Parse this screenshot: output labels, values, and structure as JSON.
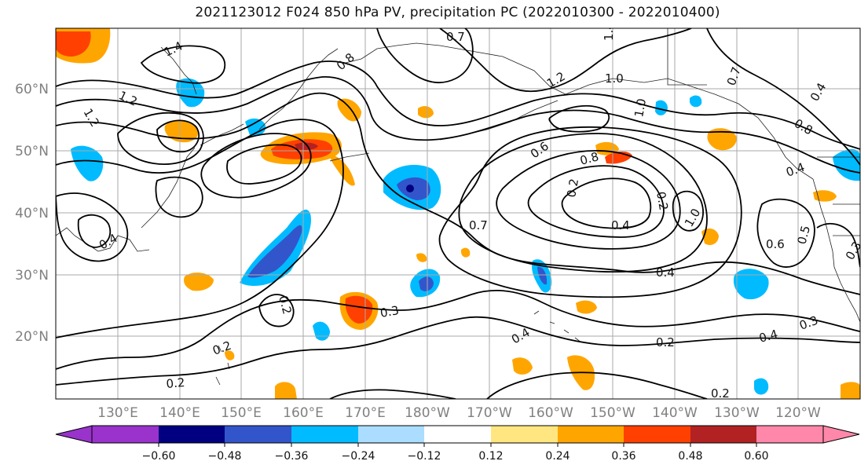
{
  "title": "2021123012 F024 850 hPa PV, precipitation PC (2022010300 - 2022010400)",
  "map": {
    "lat_labels": [
      "20°N",
      "30°N",
      "40°N",
      "50°N",
      "60°N"
    ],
    "lon_labels": [
      "130°E",
      "140°E",
      "150°E",
      "160°E",
      "170°E",
      "180°W",
      "170°W",
      "160°W",
      "150°W",
      "140°W",
      "130°W",
      "120°W"
    ],
    "contour_labels": [
      "1.4",
      "1.2",
      "1.2",
      "0.7",
      "1.4",
      "0.8",
      "1.2",
      "1.0",
      "1.0",
      "0.7",
      "0.8",
      "0.4",
      "0.4",
      "0.6",
      "0.8",
      "0.7",
      "0.2",
      "0.2",
      "0.4",
      "1.0",
      "0.5",
      "0.6",
      "0.4",
      "0.4",
      "0.3",
      "0.2",
      "0.4",
      "0.2",
      "0.3",
      "0.2",
      "0.4",
      "0.2",
      "0.2",
      "0.3"
    ]
  },
  "colorbar": {
    "ticks": [
      "−0.60",
      "−0.48",
      "−0.36",
      "−0.24",
      "−0.12",
      "0.12",
      "0.24",
      "0.36",
      "0.48",
      "0.60"
    ],
    "colors": [
      "#9933cc",
      "#000080",
      "#3355cc",
      "#00bbff",
      "#aaddff",
      "#ffffff",
      "#ffe680",
      "#ffa500",
      "#ff4000",
      "#b22222",
      "#ff88aa"
    ],
    "under_color": "#9933cc",
    "over_color": "#ff88aa"
  }
}
